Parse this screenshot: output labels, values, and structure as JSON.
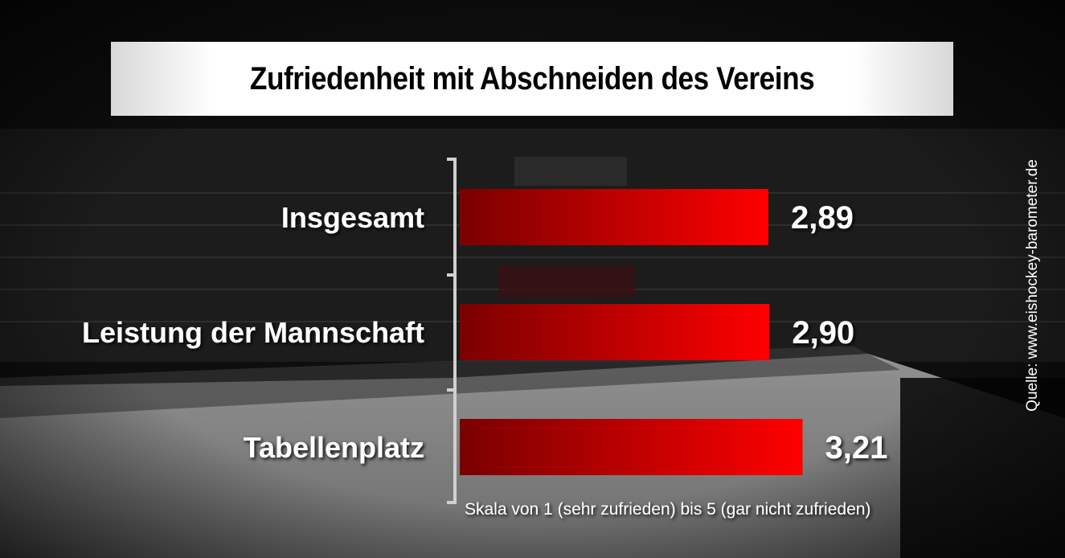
{
  "colors": {
    "bar_dark": "#7a0000",
    "bar_bright": "#ff0000",
    "label": "#ffffff"
  },
  "chart_data": {
    "type": "bar",
    "orientation": "horizontal",
    "title": "Zufriedenheit mit Abschneiden des Vereins",
    "categories": [
      "Insgesamt",
      "Leistung der Mannschaft",
      "Tabellenplatz"
    ],
    "values": [
      2.89,
      2.9,
      3.21
    ],
    "value_labels": [
      "2,89",
      "2,90",
      "3,21"
    ],
    "axis_note": "Skala von 1 (sehr zufrieden) bis 5 (gar nicht zufrieden)",
    "source": "Quelle: www.eishockey-barometer.de"
  }
}
